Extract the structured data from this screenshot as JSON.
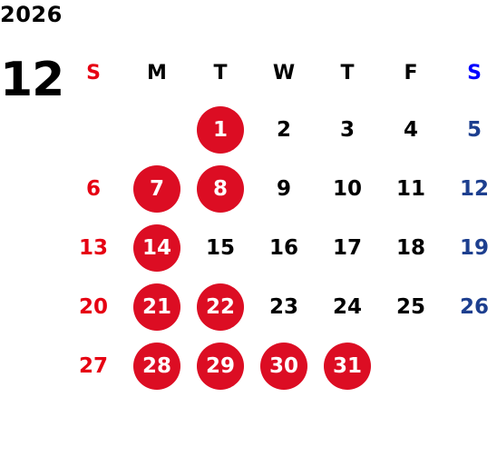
{
  "calendar": {
    "year": "2026",
    "month": "12",
    "weekday_headers": [
      "S",
      "M",
      "T",
      "W",
      "T",
      "F",
      "S"
    ],
    "colors": {
      "sunday": "#e60012",
      "saturday": "#1d3f8f",
      "saturday_header": "#0000ff",
      "highlight_fill": "#dc0d23",
      "default_text": "#000000"
    },
    "weeks": [
      [
        {
          "day": "",
          "highlight": false
        },
        {
          "day": "",
          "highlight": false
        },
        {
          "day": "1",
          "highlight": true
        },
        {
          "day": "2",
          "highlight": false
        },
        {
          "day": "3",
          "highlight": false
        },
        {
          "day": "4",
          "highlight": false
        },
        {
          "day": "5",
          "highlight": false
        }
      ],
      [
        {
          "day": "6",
          "highlight": false
        },
        {
          "day": "7",
          "highlight": true
        },
        {
          "day": "8",
          "highlight": true
        },
        {
          "day": "9",
          "highlight": false
        },
        {
          "day": "10",
          "highlight": false
        },
        {
          "day": "11",
          "highlight": false
        },
        {
          "day": "12",
          "highlight": false
        }
      ],
      [
        {
          "day": "13",
          "highlight": false
        },
        {
          "day": "14",
          "highlight": true
        },
        {
          "day": "15",
          "highlight": false
        },
        {
          "day": "16",
          "highlight": false
        },
        {
          "day": "17",
          "highlight": false
        },
        {
          "day": "18",
          "highlight": false
        },
        {
          "day": "19",
          "highlight": false
        }
      ],
      [
        {
          "day": "20",
          "highlight": false
        },
        {
          "day": "21",
          "highlight": true
        },
        {
          "day": "22",
          "highlight": true
        },
        {
          "day": "23",
          "highlight": false
        },
        {
          "day": "24",
          "highlight": false
        },
        {
          "day": "25",
          "highlight": false
        },
        {
          "day": "26",
          "highlight": false
        }
      ],
      [
        {
          "day": "27",
          "highlight": false
        },
        {
          "day": "28",
          "highlight": true
        },
        {
          "day": "29",
          "highlight": true
        },
        {
          "day": "30",
          "highlight": true
        },
        {
          "day": "31",
          "highlight": true
        },
        {
          "day": "",
          "highlight": false
        },
        {
          "day": "",
          "highlight": false
        }
      ]
    ]
  }
}
